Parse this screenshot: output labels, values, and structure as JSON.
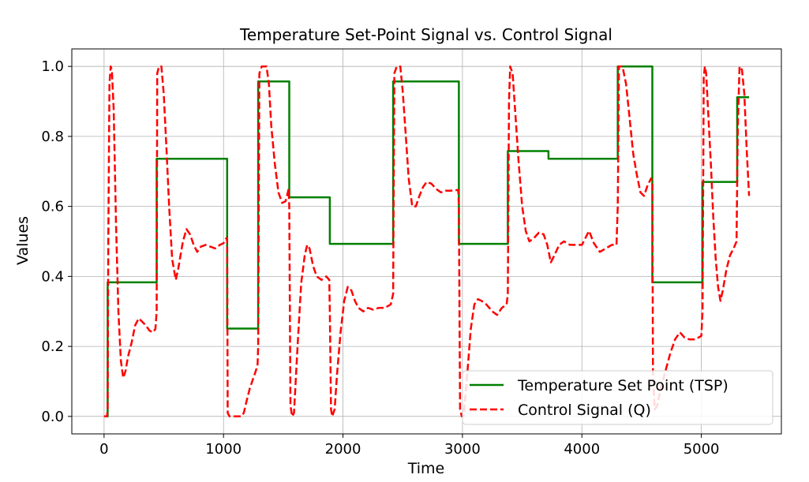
{
  "chart_data": {
    "type": "line",
    "title": "Temperature Set-Point Signal vs. Control Signal",
    "xlabel": "Time",
    "ylabel": "Values",
    "xlim": [
      -270,
      5670
    ],
    "ylim": [
      -0.05,
      1.05
    ],
    "xticks": [
      0,
      1000,
      2000,
      3000,
      4000,
      5000
    ],
    "xtick_labels": [
      "0",
      "1000",
      "2000",
      "3000",
      "4000",
      "5000"
    ],
    "yticks": [
      0.0,
      0.2,
      0.4,
      0.6,
      0.8,
      1.0
    ],
    "ytick_labels": [
      "0.0",
      "0.2",
      "0.4",
      "0.6",
      "0.8",
      "1.0"
    ],
    "grid": true,
    "legend_position": "lower-right",
    "series": [
      {
        "name": "Temperature Set Point (TSP)",
        "color": "#008000",
        "style": "solid",
        "points": [
          [
            0,
            0
          ],
          [
            30,
            0
          ],
          [
            30,
            0.383
          ],
          [
            440,
            0.383
          ],
          [
            440,
            0.736
          ],
          [
            1030,
            0.736
          ],
          [
            1030,
            0.251
          ],
          [
            1290,
            0.251
          ],
          [
            1290,
            0.957
          ],
          [
            1550,
            0.957
          ],
          [
            1550,
            0.626
          ],
          [
            1890,
            0.626
          ],
          [
            1890,
            0.493
          ],
          [
            2420,
            0.493
          ],
          [
            2420,
            0.957
          ],
          [
            2970,
            0.957
          ],
          [
            2970,
            0.493
          ],
          [
            3380,
            0.493
          ],
          [
            3380,
            0.758
          ],
          [
            3720,
            0.758
          ],
          [
            3720,
            0.736
          ],
          [
            4300,
            0.736
          ],
          [
            4300,
            1.0
          ],
          [
            4590,
            1.0
          ],
          [
            4590,
            0.383
          ],
          [
            5010,
            0.383
          ],
          [
            5010,
            0.67
          ],
          [
            5300,
            0.67
          ],
          [
            5300,
            0.912
          ],
          [
            5400,
            0.912
          ]
        ]
      },
      {
        "name": "Control Signal (Q)",
        "color": "#ff0000",
        "style": "dashed",
        "points": [
          [
            0,
            0
          ],
          [
            25,
            0
          ],
          [
            30,
            0.02
          ],
          [
            35,
            0.5
          ],
          [
            45,
            0.95
          ],
          [
            55,
            1.0
          ],
          [
            65,
            0.99
          ],
          [
            80,
            0.88
          ],
          [
            100,
            0.55
          ],
          [
            120,
            0.3
          ],
          [
            140,
            0.16
          ],
          [
            160,
            0.11
          ],
          [
            180,
            0.13
          ],
          [
            200,
            0.17
          ],
          [
            230,
            0.21
          ],
          [
            260,
            0.26
          ],
          [
            290,
            0.28
          ],
          [
            320,
            0.27
          ],
          [
            350,
            0.26
          ],
          [
            380,
            0.245
          ],
          [
            410,
            0.24
          ],
          [
            430,
            0.25
          ],
          [
            440,
            0.3
          ],
          [
            445,
            0.98
          ],
          [
            460,
            1.0
          ],
          [
            480,
            1.0
          ],
          [
            500,
            0.92
          ],
          [
            520,
            0.78
          ],
          [
            545,
            0.6
          ],
          [
            570,
            0.45
          ],
          [
            600,
            0.39
          ],
          [
            620,
            0.42
          ],
          [
            640,
            0.46
          ],
          [
            660,
            0.5
          ],
          [
            690,
            0.535
          ],
          [
            720,
            0.52
          ],
          [
            750,
            0.49
          ],
          [
            780,
            0.47
          ],
          [
            810,
            0.485
          ],
          [
            850,
            0.49
          ],
          [
            890,
            0.485
          ],
          [
            930,
            0.48
          ],
          [
            970,
            0.49
          ],
          [
            1000,
            0.495
          ],
          [
            1025,
            0.51
          ],
          [
            1030,
            0.5
          ],
          [
            1035,
            0.01
          ],
          [
            1050,
            0
          ],
          [
            1100,
            0
          ],
          [
            1150,
            0
          ],
          [
            1170,
            0.01
          ],
          [
            1190,
            0.04
          ],
          [
            1220,
            0.08
          ],
          [
            1260,
            0.12
          ],
          [
            1285,
            0.145
          ],
          [
            1290,
            0.2
          ],
          [
            1300,
            0.98
          ],
          [
            1320,
            1.0
          ],
          [
            1360,
            1.0
          ],
          [
            1380,
            0.95
          ],
          [
            1400,
            0.83
          ],
          [
            1430,
            0.72
          ],
          [
            1460,
            0.64
          ],
          [
            1490,
            0.61
          ],
          [
            1520,
            0.615
          ],
          [
            1545,
            0.65
          ],
          [
            1550,
            0.6
          ],
          [
            1560,
            0.03
          ],
          [
            1575,
            0
          ],
          [
            1590,
            0.01
          ],
          [
            1620,
            0.2
          ],
          [
            1650,
            0.38
          ],
          [
            1680,
            0.46
          ],
          [
            1700,
            0.49
          ],
          [
            1720,
            0.48
          ],
          [
            1750,
            0.43
          ],
          [
            1780,
            0.4
          ],
          [
            1820,
            0.39
          ],
          [
            1860,
            0.4
          ],
          [
            1885,
            0.39
          ],
          [
            1890,
            0.3
          ],
          [
            1900,
            0.02
          ],
          [
            1910,
            0
          ],
          [
            1930,
            0.02
          ],
          [
            1950,
            0.12
          ],
          [
            1980,
            0.24
          ],
          [
            2010,
            0.33
          ],
          [
            2040,
            0.37
          ],
          [
            2070,
            0.36
          ],
          [
            2100,
            0.33
          ],
          [
            2130,
            0.31
          ],
          [
            2170,
            0.3
          ],
          [
            2210,
            0.31
          ],
          [
            2250,
            0.305
          ],
          [
            2300,
            0.31
          ],
          [
            2350,
            0.31
          ],
          [
            2400,
            0.32
          ],
          [
            2420,
            0.35
          ],
          [
            2430,
            0.98
          ],
          [
            2450,
            1.0
          ],
          [
            2480,
            1.0
          ],
          [
            2500,
            0.93
          ],
          [
            2520,
            0.83
          ],
          [
            2550,
            0.68
          ],
          [
            2580,
            0.6
          ],
          [
            2610,
            0.6
          ],
          [
            2640,
            0.63
          ],
          [
            2670,
            0.655
          ],
          [
            2700,
            0.67
          ],
          [
            2740,
            0.665
          ],
          [
            2780,
            0.65
          ],
          [
            2820,
            0.64
          ],
          [
            2860,
            0.645
          ],
          [
            2900,
            0.645
          ],
          [
            2965,
            0.647
          ],
          [
            2970,
            0.6
          ],
          [
            2980,
            0.02
          ],
          [
            2995,
            0
          ],
          [
            3010,
            0
          ],
          [
            3040,
            0.12
          ],
          [
            3070,
            0.25
          ],
          [
            3100,
            0.32
          ],
          [
            3130,
            0.335
          ],
          [
            3160,
            0.33
          ],
          [
            3200,
            0.32
          ],
          [
            3250,
            0.3
          ],
          [
            3290,
            0.29
          ],
          [
            3330,
            0.31
          ],
          [
            3370,
            0.32
          ],
          [
            3380,
            0.35
          ],
          [
            3390,
            0.9
          ],
          [
            3400,
            1.0
          ],
          [
            3420,
            0.98
          ],
          [
            3440,
            0.88
          ],
          [
            3470,
            0.73
          ],
          [
            3500,
            0.6
          ],
          [
            3530,
            0.53
          ],
          [
            3560,
            0.5
          ],
          [
            3600,
            0.51
          ],
          [
            3640,
            0.525
          ],
          [
            3680,
            0.52
          ],
          [
            3710,
            0.49
          ],
          [
            3740,
            0.44
          ],
          [
            3770,
            0.46
          ],
          [
            3810,
            0.49
          ],
          [
            3850,
            0.5
          ],
          [
            3900,
            0.49
          ],
          [
            3950,
            0.49
          ],
          [
            4000,
            0.49
          ],
          [
            4030,
            0.51
          ],
          [
            4060,
            0.53
          ],
          [
            4100,
            0.495
          ],
          [
            4150,
            0.47
          ],
          [
            4200,
            0.48
          ],
          [
            4250,
            0.49
          ],
          [
            4290,
            0.49
          ],
          [
            4300,
            0.6
          ],
          [
            4310,
            1.0
          ],
          [
            4340,
            1.0
          ],
          [
            4370,
            0.95
          ],
          [
            4400,
            0.85
          ],
          [
            4430,
            0.75
          ],
          [
            4460,
            0.69
          ],
          [
            4490,
            0.64
          ],
          [
            4520,
            0.63
          ],
          [
            4550,
            0.66
          ],
          [
            4580,
            0.68
          ],
          [
            4590,
            0.67
          ],
          [
            4595,
            0.12
          ],
          [
            4610,
            0.02
          ],
          [
            4630,
            0.03
          ],
          [
            4660,
            0.08
          ],
          [
            4700,
            0.13
          ],
          [
            4740,
            0.18
          ],
          [
            4780,
            0.22
          ],
          [
            4820,
            0.24
          ],
          [
            4860,
            0.225
          ],
          [
            4900,
            0.22
          ],
          [
            4950,
            0.22
          ],
          [
            5000,
            0.23
          ],
          [
            5010,
            0.3
          ],
          [
            5020,
            0.97
          ],
          [
            5030,
            1.0
          ],
          [
            5040,
            0.98
          ],
          [
            5060,
            0.85
          ],
          [
            5080,
            0.72
          ],
          [
            5100,
            0.57
          ],
          [
            5120,
            0.45
          ],
          [
            5140,
            0.37
          ],
          [
            5160,
            0.33
          ],
          [
            5180,
            0.36
          ],
          [
            5210,
            0.42
          ],
          [
            5240,
            0.46
          ],
          [
            5270,
            0.48
          ],
          [
            5295,
            0.5
          ],
          [
            5305,
            0.83
          ],
          [
            5320,
            1.0
          ],
          [
            5340,
            0.99
          ],
          [
            5360,
            0.92
          ],
          [
            5380,
            0.76
          ],
          [
            5400,
            0.63
          ]
        ]
      }
    ]
  }
}
